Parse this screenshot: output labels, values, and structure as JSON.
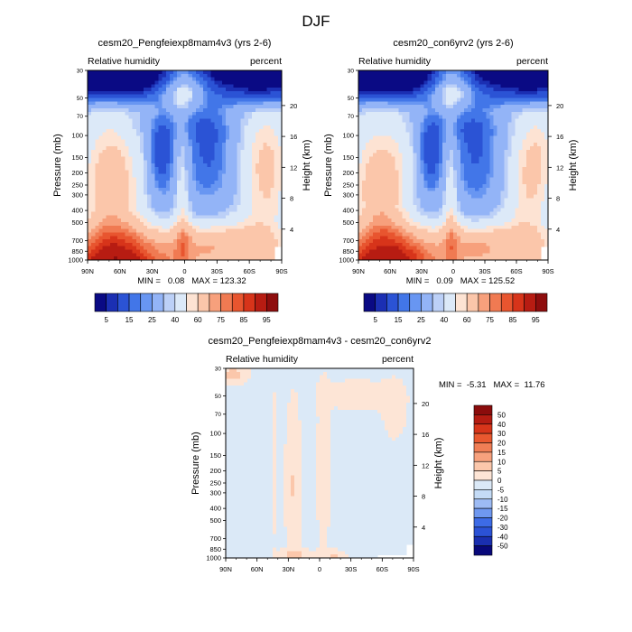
{
  "figure": {
    "title": "DJF"
  },
  "colors": {
    "plot_background": "#d0e5f5",
    "label_color": "#000000"
  },
  "chart_data": [
    {
      "type": "heatmap",
      "id": "panel-a",
      "title": "cesm20_Pengfeiexp8mam4v3 (yrs 2-6)",
      "left_label": "Relative humidity",
      "right_label": "percent",
      "xlabel": "",
      "ylabel": "Pressure (mb)",
      "y2label": "Height (km)",
      "x_ticks": [
        "90N",
        "60N",
        "30N",
        "0",
        "30S",
        "60S",
        "90S"
      ],
      "x_range": [
        90,
        -90
      ],
      "y_ticks": [
        30,
        50,
        70,
        100,
        150,
        200,
        250,
        300,
        400,
        500,
        700,
        850,
        1000
      ],
      "y_range_mb": [
        1000,
        30
      ],
      "height_ticks_km": [
        4,
        8,
        12,
        16,
        20
      ],
      "min": "0.08",
      "max": "123.32",
      "stats_text": "MIN =   0.08   MAX = 123.32",
      "field": "humid",
      "missing_bottom_right": true
    },
    {
      "type": "heatmap",
      "id": "panel-b",
      "title": "cesm20_con6yrv2 (yrs 2-6)",
      "left_label": "Relative humidity",
      "right_label": "percent",
      "xlabel": "",
      "ylabel": "Pressure (mb)",
      "y2label": "Height (km)",
      "x_ticks": [
        "90N",
        "60N",
        "30N",
        "0",
        "30S",
        "60S",
        "90S"
      ],
      "x_range": [
        90,
        -90
      ],
      "y_ticks": [
        30,
        50,
        70,
        100,
        150,
        200,
        250,
        300,
        400,
        500,
        700,
        850,
        1000
      ],
      "y_range_mb": [
        1000,
        30
      ],
      "height_ticks_km": [
        4,
        8,
        12,
        16,
        20
      ],
      "min": "0.09",
      "max": "125.52",
      "stats_text": "MIN =   0.09   MAX = 125.52",
      "field": "humid",
      "missing_bottom_right": true
    },
    {
      "type": "heatmap",
      "id": "panel-diff",
      "title": "cesm20_Pengfeiexp8mam4v3 - cesm20_con6yrv2",
      "left_label": "Relative humidity",
      "right_label": "percent",
      "xlabel": "",
      "ylabel": "Pressure (mb)",
      "y2label": "Height (km)",
      "x_ticks": [
        "90N",
        "60N",
        "30N",
        "0",
        "30S",
        "60S",
        "90S"
      ],
      "x_range": [
        90,
        -90
      ],
      "y_ticks": [
        30,
        50,
        70,
        100,
        150,
        200,
        250,
        300,
        400,
        500,
        700,
        850,
        1000
      ],
      "y_range_mb": [
        1000,
        30
      ],
      "height_ticks_km": [
        4,
        8,
        12,
        16,
        20
      ],
      "min": "-5.31",
      "max": "11.76",
      "stats_text": "MIN =  -5.31   MAX =  11.76",
      "field": "diff",
      "missing_bottom_right": true
    }
  ],
  "colorbars": {
    "humidity": {
      "orientation": "horizontal",
      "colors": [
        "#0a0a84",
        "#1b2fb3",
        "#2b53d5",
        "#4276e8",
        "#6896f2",
        "#93b4f7",
        "#bcd0f7",
        "#dce9f8",
        "#fde3d3",
        "#fbc6aa",
        "#f7a07c",
        "#f07a52",
        "#e8552f",
        "#d7341a",
        "#b71c12",
        "#8e0d0d"
      ],
      "labels": [
        "5",
        "15",
        "25",
        "40",
        "60",
        "75",
        "85",
        "95"
      ]
    },
    "difference": {
      "orientation": "vertical",
      "colors": [
        "#08087a",
        "#1a2fb0",
        "#2b52d6",
        "#3d6be6",
        "#6f98f0",
        "#9dbbf4",
        "#c4dbf6",
        "#dbe9f7",
        "#fde5d6",
        "#fbc7ab",
        "#f7a17d",
        "#f07e55",
        "#e9582f",
        "#d7351a",
        "#b41c12",
        "#8b0c0c"
      ],
      "labels": [
        "-50",
        "-40",
        "-30",
        "-20",
        "-15",
        "-10",
        "-5",
        "0",
        "5",
        "10",
        "15",
        "20",
        "30",
        "40",
        "50"
      ]
    }
  }
}
